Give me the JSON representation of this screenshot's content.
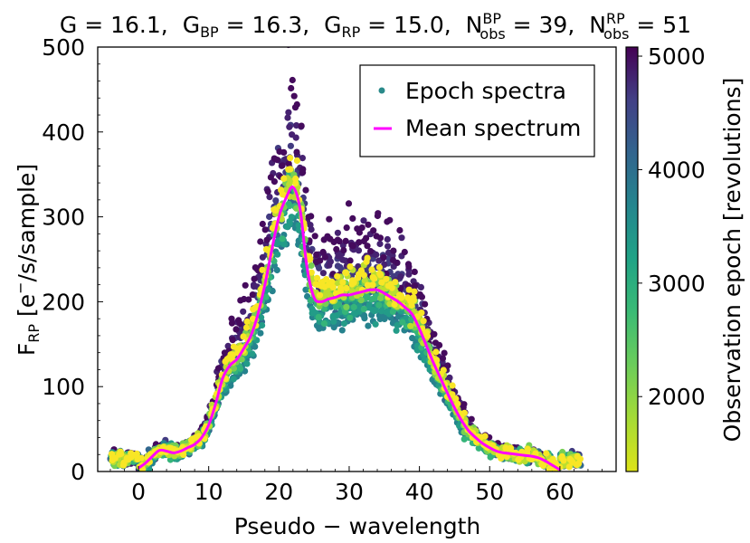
{
  "chart_data": {
    "type": "scatter",
    "title": {
      "parts": [
        {
          "main": "G = 16.1,"
        },
        {
          "main": "G",
          "sub": "BP",
          "rest": " = 16.3,"
        },
        {
          "main": "G",
          "sub": "RP",
          "rest": " = 15.0,"
        },
        {
          "main": "N",
          "sup": "BP",
          "sub": "obs",
          "rest": " = 39,"
        },
        {
          "main": "N",
          "sup": "RP",
          "sub": "obs",
          "rest": " = 51"
        }
      ],
      "G": 16.1,
      "G_BP": 16.3,
      "G_RP": 15.0,
      "N_obs_BP": 39,
      "N_obs_RP": 51
    },
    "xlabel": "Pseudo − wavelength",
    "ylabel": {
      "main": "F",
      "sub": "RP",
      "rest": " [e",
      "sup": "−",
      "tail": "/s/sample]"
    },
    "xlim": [
      -5.8,
      68
    ],
    "ylim": [
      0,
      500
    ],
    "xticks": [
      0,
      10,
      20,
      30,
      40,
      50,
      60
    ],
    "yticks": [
      0,
      100,
      200,
      300,
      400,
      500
    ],
    "grid": false,
    "legend": {
      "placement": "top-right",
      "entries": [
        {
          "label": "Epoch spectra",
          "marker": "dot",
          "color": "#2a8a8a"
        },
        {
          "label": "Mean spectrum",
          "marker": "line",
          "color": "#ff00ff"
        }
      ]
    },
    "colorbar": {
      "label": "Observation epoch [revolutions]",
      "colormap": "viridis",
      "range": [
        1340,
        5080
      ],
      "ticks": [
        2000,
        3000,
        4000,
        5000
      ]
    },
    "mean_spectrum": {
      "color": "#ff00ff",
      "x": [
        0,
        1,
        2,
        3,
        4,
        5,
        6,
        7,
        8,
        9,
        10,
        11,
        12,
        13,
        14,
        15,
        16,
        17,
        18,
        19,
        20,
        21,
        22,
        23,
        24,
        25,
        26,
        27,
        28,
        29,
        30,
        31,
        32,
        33,
        34,
        35,
        36,
        37,
        38,
        39,
        40,
        41,
        42,
        43,
        44,
        45,
        46,
        47,
        48,
        49,
        50,
        51,
        52,
        53,
        54,
        55,
        56,
        57,
        58,
        59,
        60
      ],
      "y": [
        4,
        10,
        18,
        25,
        24,
        22,
        24,
        28,
        32,
        40,
        55,
        80,
        110,
        125,
        132,
        145,
        160,
        185,
        220,
        262,
        300,
        322,
        335,
        310,
        240,
        205,
        200,
        203,
        205,
        208,
        208,
        210,
        212,
        214,
        214,
        210,
        205,
        200,
        193,
        185,
        168,
        148,
        128,
        110,
        92,
        75,
        60,
        48,
        40,
        33,
        28,
        24,
        22,
        21,
        20,
        19,
        18,
        16,
        12,
        7,
        2
      ]
    },
    "epoch_groups": [
      {
        "epoch": 1450,
        "offset": 1.3,
        "spread": 0.12
      },
      {
        "epoch": 1700,
        "offset": 1.22,
        "spread": 0.1
      },
      {
        "epoch": 2000,
        "offset": 1.12,
        "spread": 0.08
      },
      {
        "epoch": 2600,
        "offset": 0.95,
        "spread": 0.06
      },
      {
        "epoch": 3000,
        "offset": 0.88,
        "spread": 0.06
      },
      {
        "epoch": 3400,
        "offset": 0.92,
        "spread": 0.06
      },
      {
        "epoch": 3800,
        "offset": 0.97,
        "spread": 0.06
      },
      {
        "epoch": 4300,
        "offset": 1.03,
        "spread": 0.06
      },
      {
        "epoch": 4700,
        "offset": 1.06,
        "spread": 0.06
      },
      {
        "epoch": 5050,
        "offset": 1.08,
        "spread": 0.06
      }
    ]
  }
}
